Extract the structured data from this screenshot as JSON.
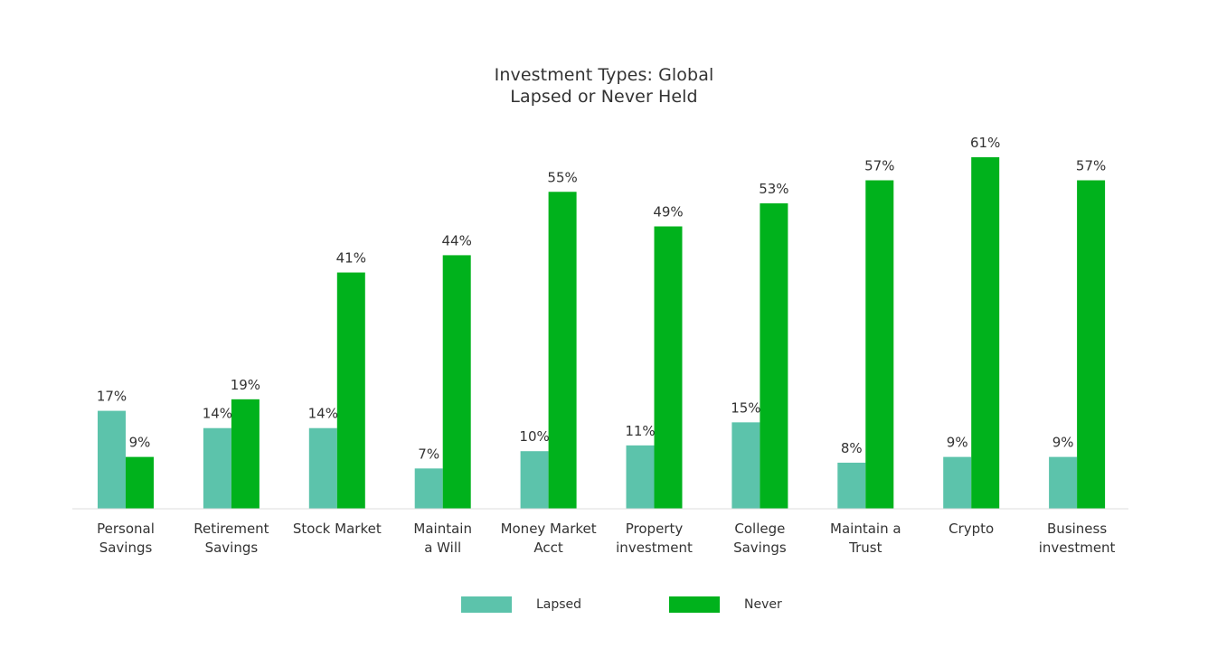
{
  "chart_data": {
    "type": "bar",
    "title": [
      "Investment Types: Global",
      "Lapsed or Never Held"
    ],
    "categories": [
      [
        "Personal",
        "Savings"
      ],
      [
        "Retirement",
        "Savings"
      ],
      [
        "Stock Market"
      ],
      [
        "Maintain",
        "a Will"
      ],
      [
        "Money Market",
        "Acct"
      ],
      [
        "Property",
        "investment"
      ],
      [
        "College",
        "Savings"
      ],
      [
        "Maintain a",
        "Trust"
      ],
      [
        "Crypto"
      ],
      [
        "Business",
        "investment"
      ]
    ],
    "series": [
      {
        "name": "Lapsed",
        "color": "#5cc3ab",
        "values": [
          17,
          14,
          14,
          7,
          10,
          11,
          15,
          8,
          9,
          9
        ],
        "labels": [
          "17%",
          "14%",
          "14%",
          "7%",
          "10%",
          "11%",
          "15%",
          "8%",
          "9%",
          "9%"
        ]
      },
      {
        "name": "Never",
        "color": "#00b21c",
        "values": [
          9,
          19,
          41,
          44,
          55,
          49,
          53,
          57,
          61,
          57
        ],
        "labels": [
          "9%",
          "19%",
          "41%",
          "44%",
          "55%",
          "49%",
          "53%",
          "57%",
          "61%",
          "57%"
        ]
      }
    ],
    "xlabel": "",
    "ylabel": "",
    "ylim": [
      0,
      61
    ],
    "grid": false,
    "legend_position": "bottom"
  }
}
